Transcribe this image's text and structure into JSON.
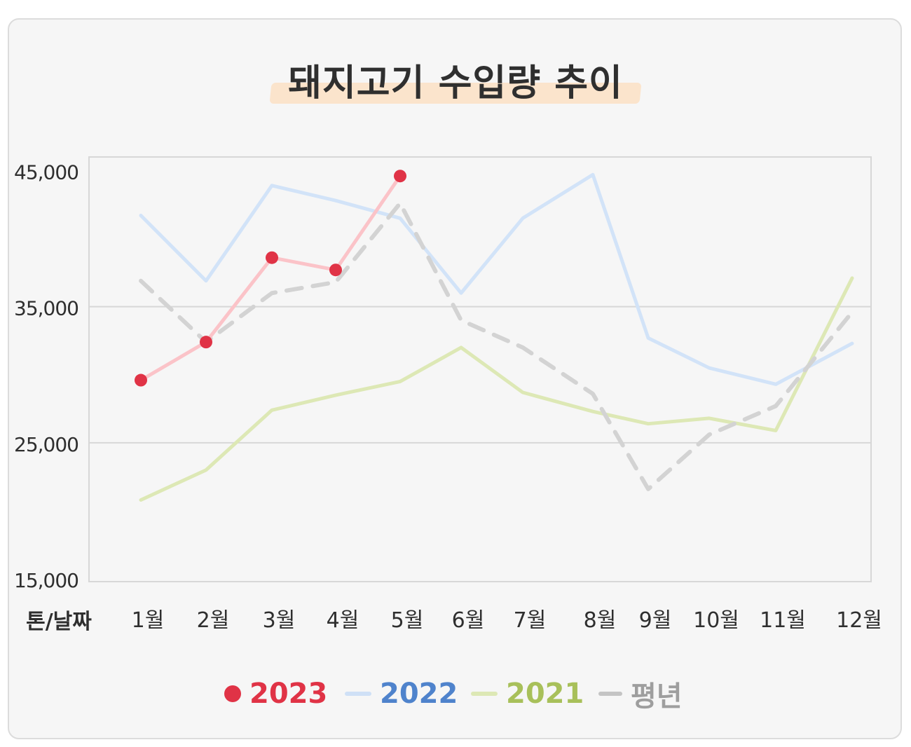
{
  "title": "돼지고기 수입량 추이",
  "chart_data": {
    "type": "line",
    "title": "돼지고기 수입량 추이",
    "xlabel": "톤/날짜",
    "ylabel": "",
    "ylim": [
      15000,
      45000
    ],
    "yticks": [
      "45,000",
      "35,000",
      "25,000",
      "15,000"
    ],
    "ytick_values": [
      45000,
      35000,
      25000,
      15000
    ],
    "categories": [
      "1월",
      "2월",
      "3월",
      "4월",
      "5월",
      "6월",
      "7월",
      "8월",
      "9월",
      "10월",
      "11월",
      "12월"
    ],
    "grid": true,
    "legend_position": "bottom",
    "series": [
      {
        "name": "2021",
        "color": "#a8c05a",
        "style": "solid",
        "values": [
          20800,
          23000,
          27400,
          28500,
          29500,
          32000,
          28700,
          27300,
          26400,
          26800,
          25900,
          37100
        ]
      },
      {
        "name": "2022",
        "color": "#4f83cc",
        "style": "solid",
        "values": [
          41700,
          36900,
          43900,
          42800,
          41500,
          36000,
          41500,
          44700,
          32700,
          30500,
          29300,
          32300
        ]
      },
      {
        "name": "평년",
        "color": "#bdbdbd",
        "style": "dashed",
        "values": [
          36900,
          32400,
          36000,
          36800,
          42600,
          34000,
          32000,
          28600,
          21600,
          25600,
          27700,
          34600
        ]
      },
      {
        "name": "2023",
        "color": "#e03346",
        "style": "markers",
        "values": [
          29600,
          32400,
          38600,
          37700,
          44600,
          null,
          null,
          null,
          null,
          null,
          null,
          null
        ]
      }
    ]
  },
  "legend": [
    {
      "label": "2023",
      "color": "#e03346",
      "icon": "dot"
    },
    {
      "label": "2022",
      "color": "#4f83cc",
      "icon": "line",
      "swatch": "#cfe0f6"
    },
    {
      "label": "2021",
      "color": "#a8c05a",
      "icon": "line",
      "swatch": "#dde8b5"
    },
    {
      "label": "평년",
      "color": "#9e9e9e",
      "icon": "dash",
      "swatch": "#c4c4c4"
    }
  ]
}
